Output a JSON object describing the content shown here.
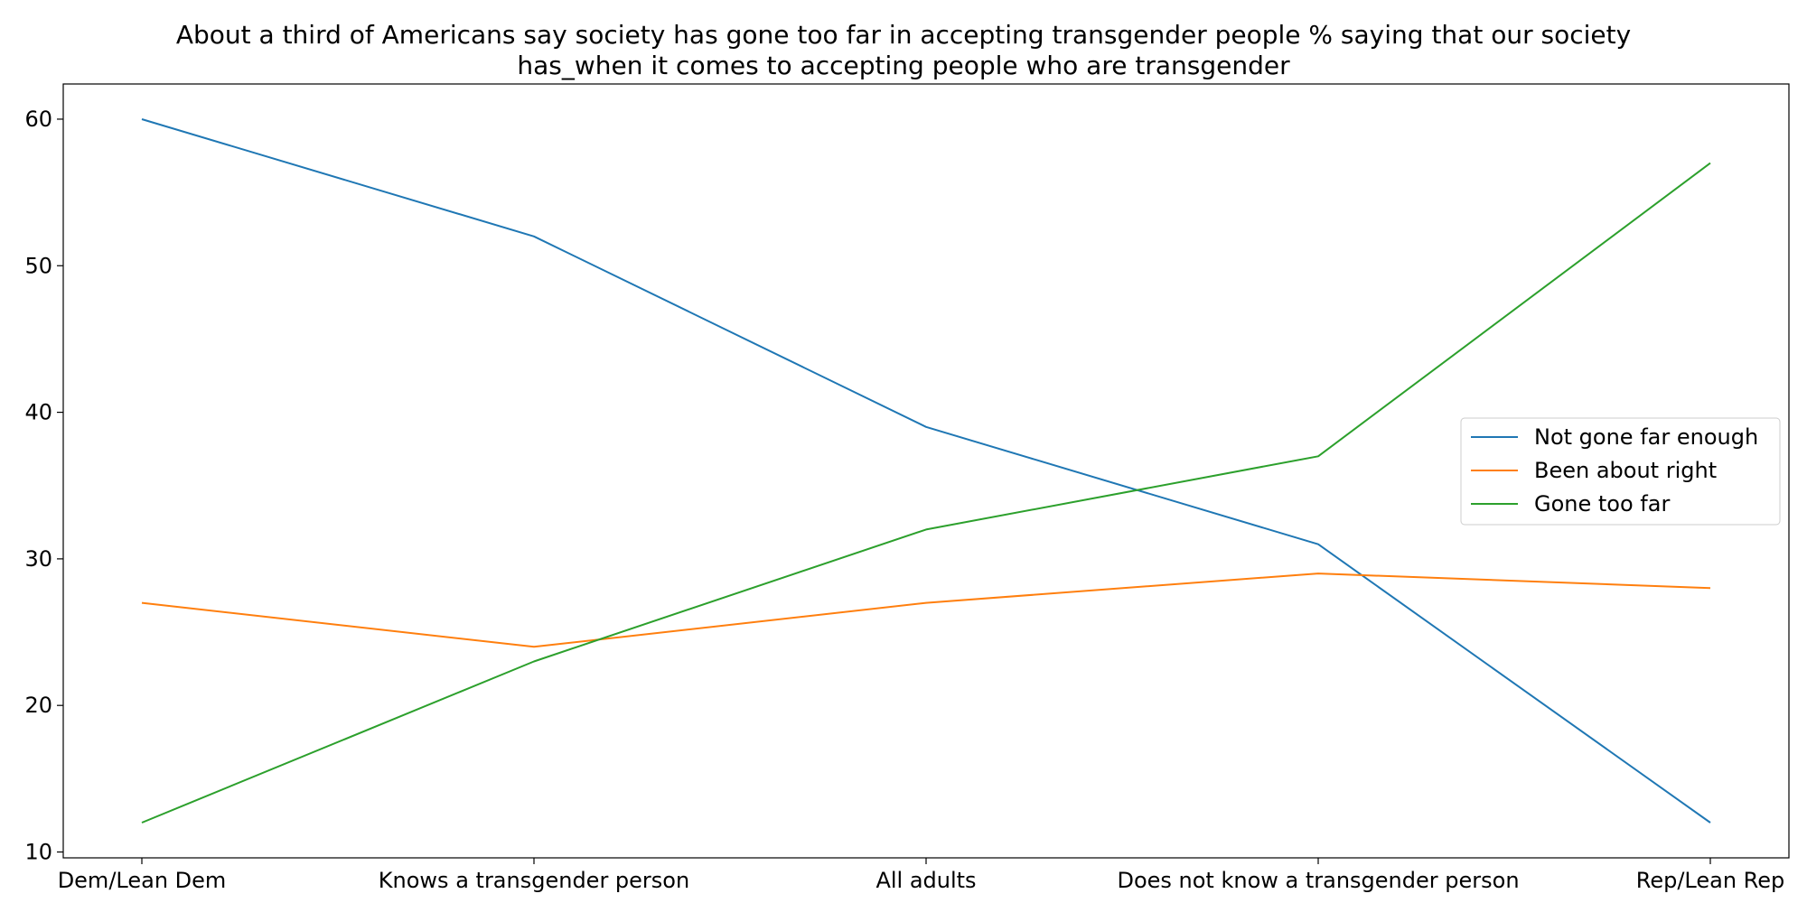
{
  "chart_data": {
    "type": "line",
    "title_lines": [
      "About a third of Americans say society has gone too far in accepting transgender people % saying that our society",
      "has_when it comes to accepting people who are transgender"
    ],
    "xlabel": "",
    "ylabel": "",
    "categories": [
      "Dem/Lean Dem",
      "Knows a transgender person",
      "All adults",
      "Does not know a transgender person",
      "Rep/Lean Rep"
    ],
    "yticks": [
      10,
      20,
      30,
      40,
      50,
      60
    ],
    "ylim": [
      9.6,
      62.4
    ],
    "grid": false,
    "legend_position": "center-right",
    "series": [
      {
        "name": "Not gone far enough",
        "color": "#1f77b4",
        "values": [
          60,
          52,
          39,
          31,
          12
        ]
      },
      {
        "name": "Been about right",
        "color": "#ff7f0e",
        "values": [
          27,
          24,
          27,
          29,
          28
        ]
      },
      {
        "name": "Gone too far",
        "color": "#2ca02c",
        "values": [
          12,
          23,
          32,
          37,
          57
        ]
      }
    ]
  }
}
